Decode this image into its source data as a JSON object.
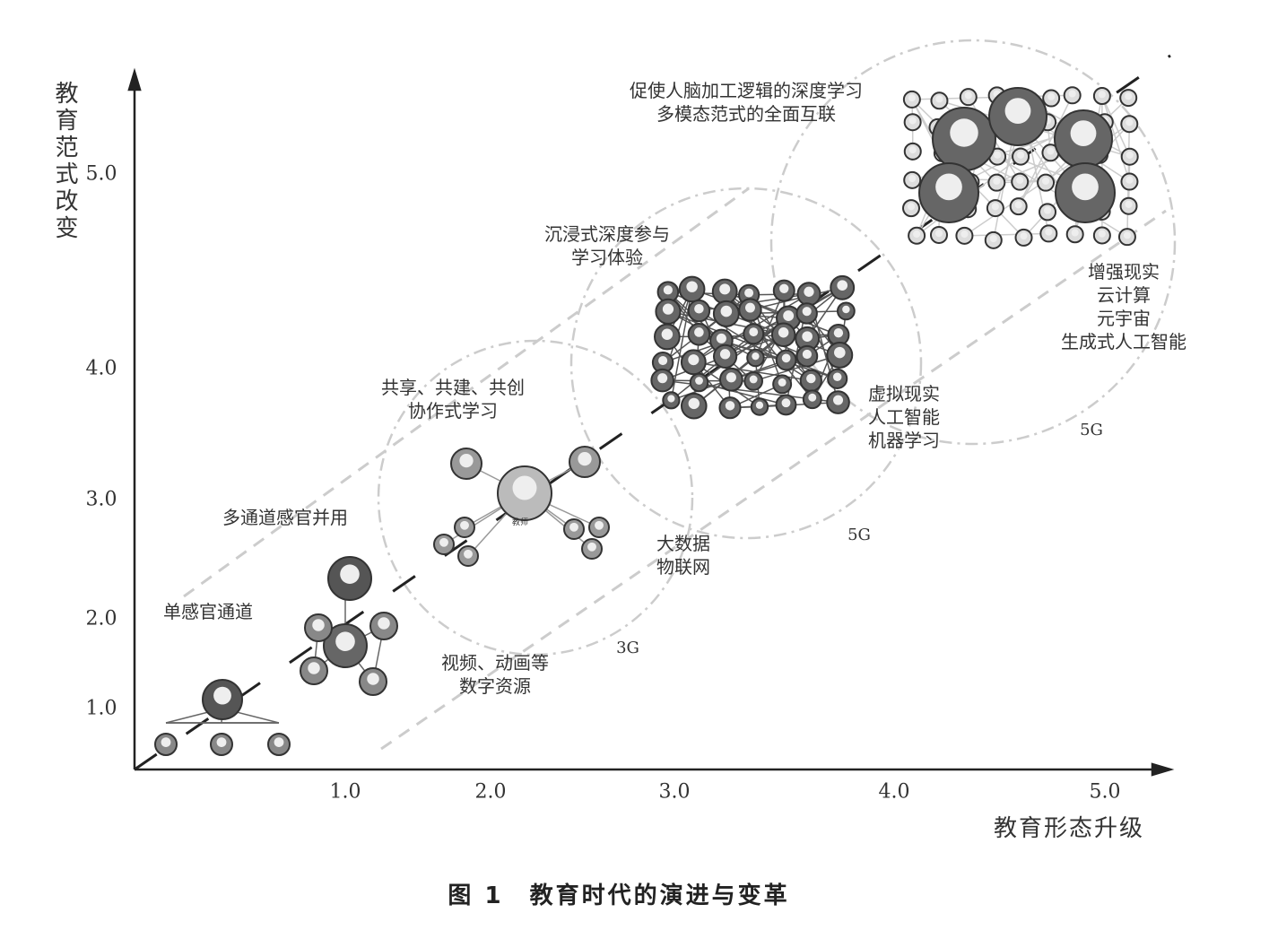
{
  "axes": {
    "y_label": "教育范式改变",
    "x_label": "教育形态升级",
    "y_ticks": [
      "1.0",
      "2.0",
      "3.0",
      "4.0",
      "5.0"
    ],
    "x_ticks": [
      "1.0",
      "2.0",
      "3.0",
      "4.0",
      "5.0"
    ]
  },
  "stages": [
    {
      "lines": [
        "单感官通道"
      ]
    },
    {
      "lines": [
        "多通道感官并用"
      ]
    },
    {
      "lines": [
        "共享、共建、共创",
        "协作式学习"
      ],
      "center_label": "教师"
    },
    {
      "lines": [
        "沉浸式深度参与",
        "学习体验"
      ]
    },
    {
      "lines": [
        "促使人脑加工逻辑的深度学习",
        "多模态范式的全面互联"
      ]
    }
  ],
  "technologies": [
    {
      "lines": [
        "视频、动画等",
        "数字资源"
      ]
    },
    {
      "lines": [
        "3G"
      ]
    },
    {
      "lines": [
        "大数据",
        "物联网"
      ]
    },
    {
      "lines": [
        "5G"
      ]
    },
    {
      "lines": [
        "虚拟现实",
        "人工智能",
        "机器学习"
      ]
    },
    {
      "lines": [
        "5G"
      ]
    },
    {
      "lines": [
        "增强现实",
        "云计算",
        "元宇宙",
        "生成式人工智能"
      ]
    }
  ],
  "caption": "图 1　教育时代的演进与变革"
}
